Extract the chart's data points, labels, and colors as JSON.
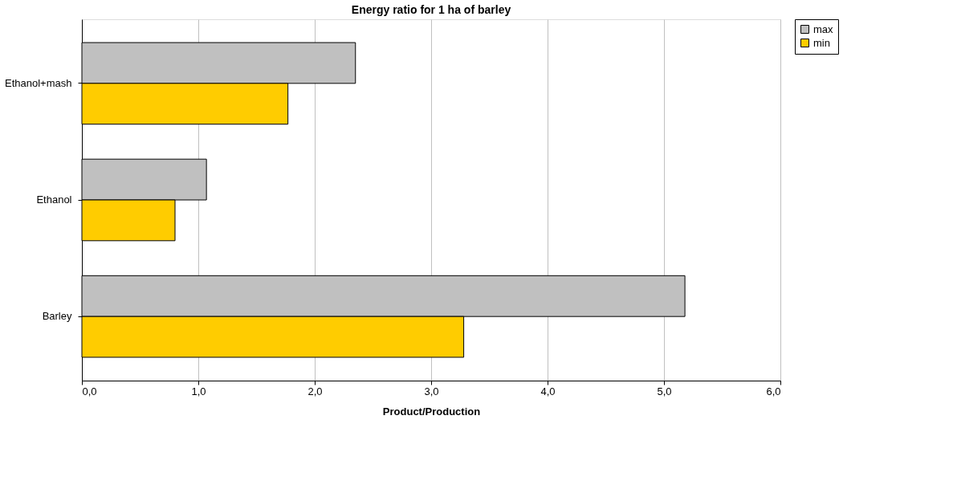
{
  "chart_data": {
    "type": "bar",
    "orientation": "horizontal",
    "title": "Energy ratio for 1 ha of barley",
    "xlabel": "Product/Production",
    "categories": [
      "Ethanol+mash",
      "Ethanol",
      "Barley"
    ],
    "series": [
      {
        "name": "max",
        "color": "#c0c0c0",
        "values": [
          2.35,
          1.07,
          5.18
        ]
      },
      {
        "name": "min",
        "color": "#ffcc00",
        "values": [
          1.77,
          0.8,
          3.28
        ]
      }
    ],
    "xlim": [
      0,
      6
    ],
    "xticks": [
      {
        "value": 0,
        "label": "0,0"
      },
      {
        "value": 1,
        "label": "1,0"
      },
      {
        "value": 2,
        "label": "2,0"
      },
      {
        "value": 3,
        "label": "3,0"
      },
      {
        "value": 4,
        "label": "4,0"
      },
      {
        "value": 5,
        "label": "5,0"
      },
      {
        "value": 6,
        "label": "6,0"
      }
    ],
    "grid": "x",
    "legend": "right"
  }
}
